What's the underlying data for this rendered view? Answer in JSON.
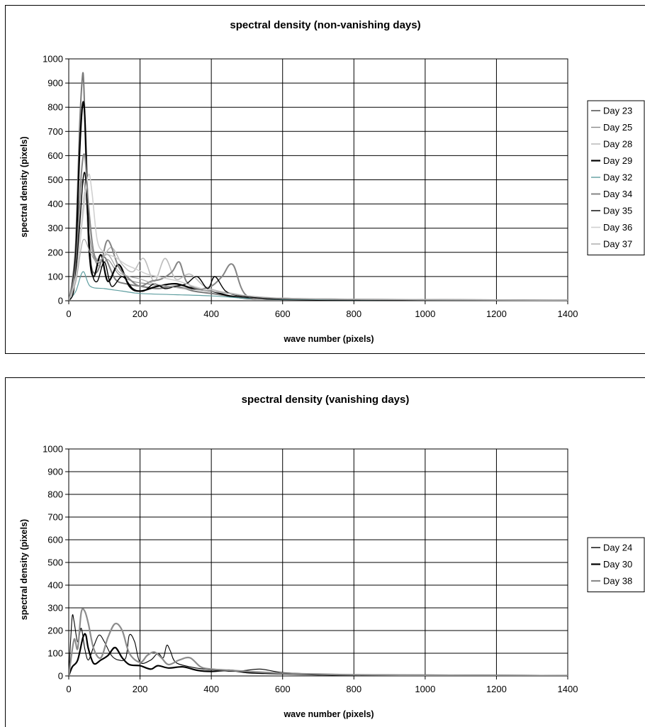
{
  "chart_data": [
    {
      "type": "line",
      "title": "spectral density (non-vanishing days)",
      "xlabel": "wave number (pixels)",
      "ylabel": "spectral density (pixels)",
      "xlim": [
        0,
        1400
      ],
      "ylim": [
        0,
        1000
      ],
      "xticks": [
        0,
        200,
        400,
        600,
        800,
        1000,
        1200,
        1400
      ],
      "yticks": [
        0,
        100,
        200,
        300,
        400,
        500,
        600,
        700,
        800,
        900,
        1000
      ],
      "grid": true,
      "legend_position": "right",
      "series": [
        {
          "name": "Day 23",
          "color": "#7a7a7a",
          "width": 2.0,
          "x": [
            0,
            10,
            20,
            30,
            38,
            42,
            48,
            55,
            65,
            80,
            100,
            130,
            160,
            200,
            250,
            300,
            350,
            400,
            450,
            500,
            600,
            700,
            800,
            1000,
            1200,
            1400
          ],
          "y": [
            0,
            80,
            250,
            700,
            920,
            900,
            600,
            250,
            130,
            120,
            180,
            90,
            70,
            60,
            50,
            60,
            40,
            30,
            20,
            15,
            10,
            6,
            5,
            4,
            3,
            2
          ]
        },
        {
          "name": "Day 25",
          "color": "#8a8a8a",
          "width": 1.2,
          "x": [
            0,
            15,
            30,
            40,
            48,
            55,
            70,
            90,
            110,
            140,
            180,
            220,
            260,
            300,
            350,
            400,
            450,
            500,
            600,
            800,
            1000,
            1200,
            1400
          ],
          "y": [
            0,
            120,
            420,
            500,
            430,
            300,
            180,
            140,
            170,
            110,
            80,
            70,
            60,
            55,
            50,
            40,
            30,
            20,
            10,
            6,
            4,
            3,
            2
          ]
        },
        {
          "name": "Day 28",
          "color": "#bdbdbd",
          "width": 1.6,
          "x": [
            0,
            20,
            35,
            45,
            55,
            70,
            90,
            120,
            150,
            180,
            210,
            240,
            270,
            300,
            340,
            380,
            420,
            460,
            500,
            600,
            800,
            1000,
            1200,
            1400
          ],
          "y": [
            0,
            100,
            300,
            450,
            350,
            200,
            170,
            220,
            150,
            120,
            175,
            80,
            175,
            90,
            110,
            60,
            40,
            30,
            20,
            10,
            6,
            4,
            3,
            2
          ]
        },
        {
          "name": "Day 29",
          "color": "#000000",
          "width": 2.2,
          "x": [
            0,
            10,
            20,
            30,
            38,
            44,
            50,
            58,
            70,
            90,
            110,
            140,
            170,
            200,
            250,
            300,
            350,
            400,
            450,
            500,
            600,
            800,
            1000,
            1200,
            1400
          ],
          "y": [
            0,
            60,
            200,
            600,
            800,
            790,
            550,
            200,
            100,
            190,
            80,
            150,
            60,
            40,
            60,
            70,
            50,
            40,
            20,
            10,
            6,
            4,
            3,
            2,
            1
          ]
        },
        {
          "name": "Day 32",
          "color": "#5f9ea0",
          "width": 1.2,
          "x": [
            0,
            20,
            40,
            60,
            100,
            150,
            200,
            300,
            400,
            500,
            600,
            800,
            1000,
            1200,
            1400
          ],
          "y": [
            0,
            40,
            120,
            60,
            50,
            40,
            30,
            25,
            20,
            10,
            6,
            4,
            3,
            2,
            1
          ]
        },
        {
          "name": "Day 34",
          "color": "#858585",
          "width": 2.0,
          "x": [
            0,
            20,
            35,
            45,
            55,
            70,
            90,
            110,
            140,
            170,
            200,
            230,
            260,
            290,
            310,
            330,
            360,
            400,
            430,
            460,
            500,
            600,
            800,
            1000,
            1200,
            1400
          ],
          "y": [
            0,
            150,
            520,
            600,
            400,
            200,
            160,
            250,
            140,
            90,
            60,
            80,
            90,
            120,
            160,
            80,
            50,
            60,
            100,
            150,
            20,
            10,
            6,
            4,
            3,
            2
          ]
        },
        {
          "name": "Day 35",
          "color": "#000000",
          "width": 1.4,
          "x": [
            0,
            15,
            30,
            40,
            47,
            55,
            65,
            80,
            100,
            120,
            150,
            180,
            210,
            240,
            270,
            300,
            330,
            360,
            390,
            410,
            440,
            480,
            550,
            600,
            800,
            1000,
            1200,
            1400
          ],
          "y": [
            0,
            50,
            300,
            500,
            510,
            300,
            120,
            80,
            160,
            60,
            100,
            50,
            40,
            70,
            50,
            60,
            70,
            100,
            50,
            100,
            40,
            20,
            10,
            8,
            5,
            3,
            2,
            1
          ]
        },
        {
          "name": "Day 36",
          "color": "#d0d0d0",
          "width": 1.6,
          "x": [
            0,
            20,
            40,
            55,
            65,
            80,
            100,
            130,
            160,
            190,
            220,
            250,
            280,
            310,
            350,
            400,
            450,
            500,
            600,
            800,
            1000,
            1200,
            1400
          ],
          "y": [
            0,
            100,
            350,
            520,
            450,
            250,
            200,
            180,
            150,
            130,
            110,
            100,
            90,
            80,
            60,
            40,
            30,
            20,
            10,
            6,
            4,
            3,
            2
          ]
        },
        {
          "name": "Day 37",
          "color": "#a8a8a8",
          "width": 1.2,
          "x": [
            0,
            20,
            40,
            60,
            80,
            110,
            140,
            170,
            200,
            240,
            280,
            320,
            360,
            400,
            450,
            500,
            600,
            800,
            1000,
            1200,
            1400
          ],
          "y": [
            0,
            80,
            250,
            200,
            160,
            190,
            120,
            100,
            90,
            70,
            60,
            50,
            45,
            40,
            30,
            20,
            10,
            6,
            4,
            3,
            2
          ]
        }
      ]
    },
    {
      "type": "line",
      "title": "spectral density (vanishing days)",
      "xlabel": "wave number (pixels)",
      "ylabel": "spectral density (pixels)",
      "xlim": [
        0,
        1400
      ],
      "ylim": [
        0,
        1000
      ],
      "xticks": [
        0,
        200,
        400,
        600,
        800,
        1000,
        1200,
        1400
      ],
      "yticks": [
        0,
        100,
        200,
        300,
        400,
        500,
        600,
        700,
        800,
        900,
        1000
      ],
      "grid": true,
      "legend_position": "right",
      "series": [
        {
          "name": "Day 24",
          "color": "#000000",
          "width": 1.1,
          "x": [
            0,
            5,
            10,
            15,
            25,
            35,
            45,
            55,
            70,
            85,
            100,
            120,
            140,
            160,
            170,
            185,
            200,
            230,
            250,
            265,
            275,
            285,
            300,
            340,
            380,
            420,
            460,
            500,
            540,
            600,
            700,
            800,
            1000,
            1200,
            1400
          ],
          "y": [
            0,
            150,
            265,
            240,
            150,
            210,
            120,
            70,
            130,
            180,
            150,
            90,
            70,
            80,
            180,
            150,
            60,
            70,
            100,
            80,
            135,
            110,
            60,
            40,
            30,
            25,
            20,
            25,
            30,
            15,
            8,
            5,
            4,
            3,
            2
          ]
        },
        {
          "name": "Day 30",
          "color": "#000000",
          "width": 2.2,
          "x": [
            0,
            10,
            25,
            40,
            48,
            55,
            70,
            90,
            110,
            130,
            150,
            170,
            200,
            230,
            250,
            280,
            320,
            360,
            400,
            450,
            500,
            550,
            600,
            700,
            800,
            1000,
            1200,
            1400
          ],
          "y": [
            0,
            40,
            70,
            170,
            180,
            120,
            55,
            70,
            90,
            125,
            80,
            50,
            45,
            30,
            45,
            35,
            40,
            25,
            20,
            25,
            15,
            12,
            10,
            6,
            4,
            3,
            2,
            1
          ]
        },
        {
          "name": "Day 38",
          "color": "#8c8c8c",
          "width": 2.2,
          "x": [
            0,
            15,
            25,
            35,
            45,
            55,
            70,
            90,
            110,
            130,
            150,
            170,
            200,
            220,
            240,
            260,
            280,
            310,
            340,
            370,
            400,
            450,
            500,
            600,
            700,
            800,
            1000,
            1200,
            1400
          ],
          "y": [
            0,
            160,
            120,
            280,
            285,
            230,
            120,
            80,
            170,
            230,
            200,
            100,
            60,
            90,
            105,
            80,
            50,
            70,
            80,
            40,
            30,
            25,
            20,
            12,
            8,
            5,
            3,
            2,
            1
          ]
        }
      ]
    }
  ]
}
